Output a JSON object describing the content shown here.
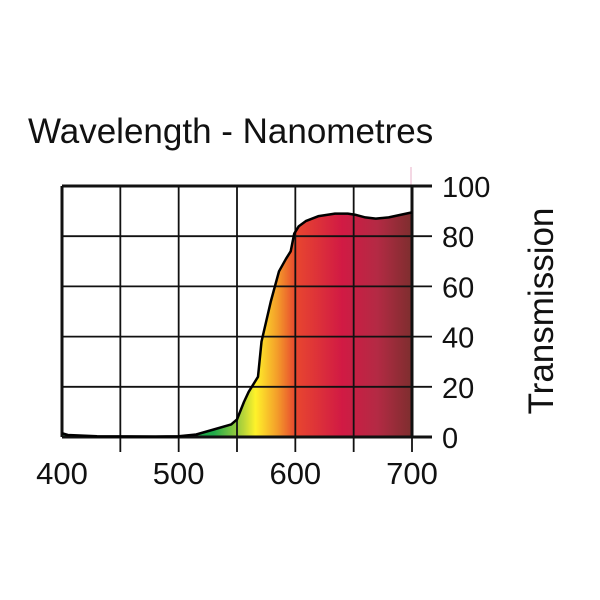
{
  "chart_data": {
    "type": "area",
    "title": "Wavelength - Nanometres",
    "xlabel": "Wavelength - Nanometres",
    "ylabel": "Transmission",
    "xlim": [
      400,
      700
    ],
    "ylim": [
      0,
      100
    ],
    "x_ticks": [
      400,
      500,
      600,
      700
    ],
    "y_ticks": [
      0,
      20,
      40,
      60,
      80,
      100
    ],
    "grid": true,
    "series": [
      {
        "name": "Transmission",
        "x": [
          400,
          405,
          430,
          480,
          500,
          515,
          530,
          545,
          550,
          556,
          560,
          568,
          571,
          579,
          586,
          592,
          596,
          599,
          603,
          609,
          620,
          634,
          645,
          652,
          660,
          669,
          680,
          690,
          700
        ],
        "y": [
          1.5,
          0.8,
          0.3,
          0.2,
          0.3,
          1,
          3,
          5,
          7,
          14,
          18,
          24,
          38,
          54,
          66,
          71,
          74,
          81,
          84,
          86,
          88,
          89,
          89,
          88.5,
          87.5,
          87,
          87.5,
          88.5,
          89.5
        ]
      }
    ],
    "gradient_colors": [
      {
        "nm": 530,
        "color": "#1faa4a"
      },
      {
        "nm": 555,
        "color": "#b5d43a"
      },
      {
        "nm": 566,
        "color": "#fff22a"
      },
      {
        "nm": 585,
        "color": "#f39a2a"
      },
      {
        "nm": 600,
        "color": "#e8472f"
      },
      {
        "nm": 640,
        "color": "#d11a44"
      },
      {
        "nm": 670,
        "color": "#b42a44"
      },
      {
        "nm": 700,
        "color": "#7d2e2e"
      }
    ]
  }
}
